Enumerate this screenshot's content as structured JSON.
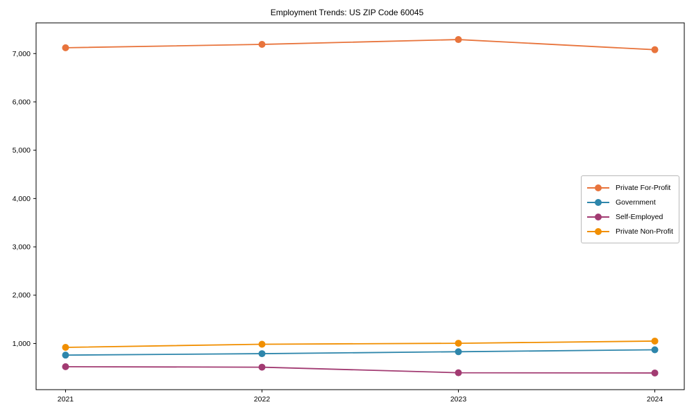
{
  "chart_data": {
    "type": "line",
    "title": "Employment Trends: US ZIP Code 60045",
    "categories": [
      "2021",
      "2022",
      "2023",
      "2024"
    ],
    "x_numeric": [
      2021,
      2022,
      2023,
      2024
    ],
    "series": [
      {
        "name": "Private For-Profit",
        "color": "#E8743C",
        "values": [
          7120,
          7190,
          7290,
          7080
        ]
      },
      {
        "name": "Government",
        "color": "#2E86AB",
        "values": [
          760,
          790,
          830,
          870
        ]
      },
      {
        "name": "Self-Employed",
        "color": "#A23B72",
        "values": [
          520,
          510,
          395,
          390
        ]
      },
      {
        "name": "Private Non-Profit",
        "color": "#F18F01",
        "values": [
          920,
          985,
          1005,
          1050
        ]
      }
    ],
    "xlabel": "",
    "ylabel": "",
    "xlim": [
      2020.85,
      2024.15
    ],
    "ylim": [
      45,
      7635
    ],
    "yticks": [
      1000,
      2000,
      3000,
      4000,
      5000,
      6000,
      7000
    ],
    "ytick_labels": [
      "1,000",
      "2,000",
      "3,000",
      "4,000",
      "5,000",
      "6,000",
      "7,000"
    ],
    "grid": false,
    "legend_position": "right-center",
    "marker": "circle",
    "frame_color": "#000000",
    "background_color": "#ffffff"
  }
}
